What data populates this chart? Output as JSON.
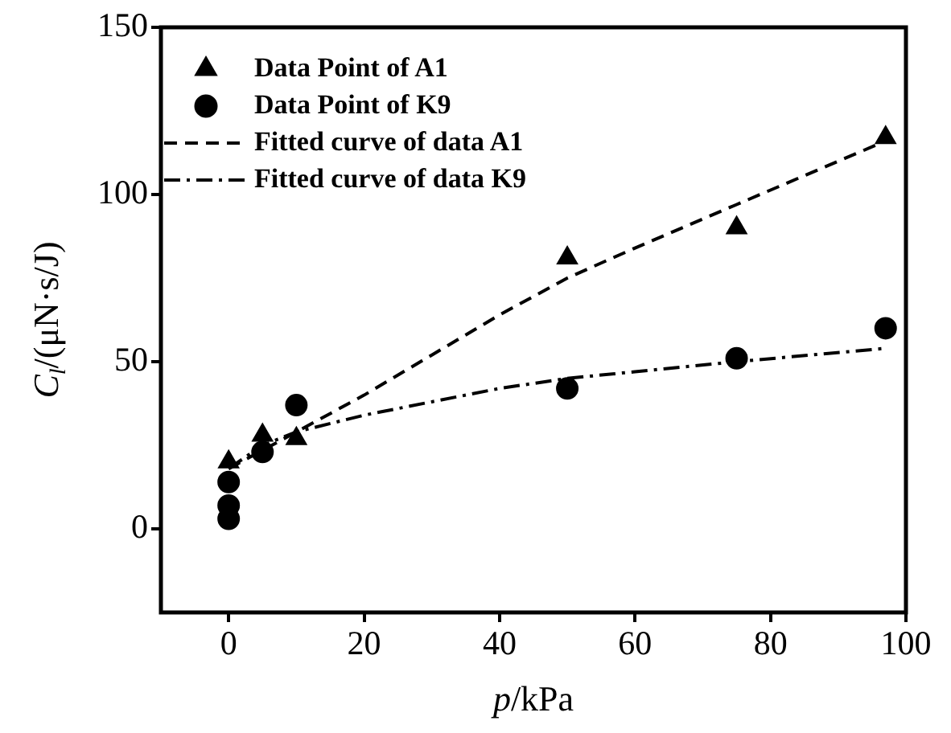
{
  "chart_data": {
    "type": "scatter",
    "xlabel": "p/kPa",
    "ylabel": "C$_{l}$/(μN·s/J)",
    "xlim": [
      -10,
      100
    ],
    "xticks": [
      0,
      20,
      40,
      60,
      80,
      100
    ],
    "ylim": [
      -25,
      150
    ],
    "yticks": [
      0,
      50,
      100,
      150
    ],
    "grid": false,
    "legend": "top left",
    "series": [
      {
        "name": "Data Point of A1",
        "type": "scatter",
        "marker": "triangle",
        "color": "#000000",
        "x": [
          0,
          5,
          10,
          50,
          75,
          97
        ],
        "values": [
          20,
          28,
          27,
          81,
          90,
          117
        ]
      },
      {
        "name": "Data Point of K9",
        "type": "scatter",
        "marker": "circle",
        "color": "#000000",
        "x": [
          0,
          0,
          0,
          5,
          10,
          50,
          75,
          97
        ],
        "values": [
          14,
          7,
          3,
          23,
          37,
          42,
          51,
          60
        ]
      },
      {
        "name": "Fitted curve of data A1",
        "type": "line",
        "marker": "none",
        "line_style": "dashed",
        "color": "#000000",
        "x": [
          0,
          10,
          20,
          30,
          40,
          50,
          60,
          75,
          97
        ],
        "values": [
          18,
          29,
          40,
          52,
          64,
          75,
          84,
          97,
          116
        ]
      },
      {
        "name": "Fitted curve of data K9",
        "type": "line",
        "marker": "none",
        "line_style": "dashdot",
        "color": "#000000",
        "x": [
          0,
          5,
          10,
          20,
          30,
          40,
          50,
          60,
          75,
          97
        ],
        "values": [
          18,
          25,
          29,
          34,
          38,
          42,
          45,
          47,
          50,
          54
        ]
      }
    ]
  }
}
